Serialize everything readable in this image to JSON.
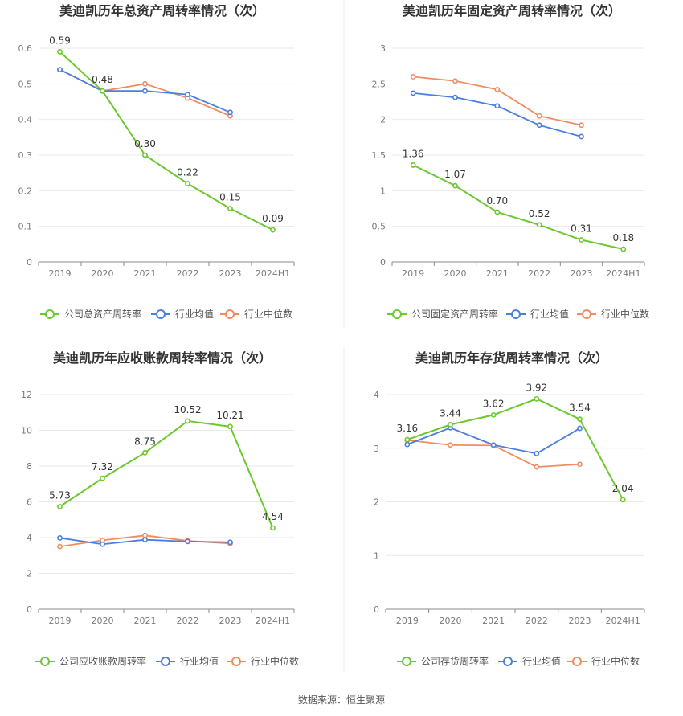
{
  "source": "数据来源：恒生聚源",
  "colors": {
    "company": "#6cc82d",
    "avg": "#4a7fe0",
    "median": "#f28b61",
    "grid": "#e8e8ee",
    "axis": "#8a8a8a"
  },
  "chart_data": [
    {
      "type": "line",
      "title": "美迪凯历年总资产周转率情况（次）",
      "categories": [
        "2019",
        "2020",
        "2021",
        "2022",
        "2023",
        "2024H1"
      ],
      "ylim": [
        0,
        0.6
      ],
      "yticks": [
        0,
        0.1,
        0.2,
        0.3,
        0.4,
        0.5,
        0.6
      ],
      "ytick_labels": [
        "0",
        "0.1",
        "0.2",
        "0.3",
        "0.4",
        "0.5",
        "0.6"
      ],
      "series": [
        {
          "name": "公司总资产周转率",
          "role": "company",
          "values": [
            0.59,
            0.48,
            0.3,
            0.22,
            0.15,
            0.09
          ],
          "labels": [
            "0.59",
            "0.48",
            "0.30",
            "0.22",
            "0.15",
            "0.09"
          ]
        },
        {
          "name": "行业均值",
          "role": "avg",
          "values": [
            0.54,
            0.48,
            0.48,
            0.47,
            0.42,
            null
          ]
        },
        {
          "name": "行业中位数",
          "role": "median",
          "values": [
            0.54,
            0.48,
            0.5,
            0.46,
            0.41,
            null
          ]
        }
      ]
    },
    {
      "type": "line",
      "title": "美迪凯历年固定资产周转率情况（次）",
      "categories": [
        "2019",
        "2020",
        "2021",
        "2022",
        "2023",
        "2024H1"
      ],
      "ylim": [
        0,
        3
      ],
      "yticks": [
        0,
        0.5,
        1,
        1.5,
        2,
        2.5,
        3
      ],
      "ytick_labels": [
        "0",
        "0.5",
        "1",
        "1.5",
        "2",
        "2.5",
        "3"
      ],
      "series": [
        {
          "name": "公司固定资产周转率",
          "role": "company",
          "values": [
            1.36,
            1.07,
            0.7,
            0.52,
            0.31,
            0.18
          ],
          "labels": [
            "1.36",
            "1.07",
            "0.70",
            "0.52",
            "0.31",
            "0.18"
          ]
        },
        {
          "name": "行业均值",
          "role": "avg",
          "values": [
            2.37,
            2.31,
            2.19,
            1.92,
            1.76,
            null
          ]
        },
        {
          "name": "行业中位数",
          "role": "median",
          "values": [
            2.6,
            2.54,
            2.42,
            2.05,
            1.92,
            null
          ]
        }
      ]
    },
    {
      "type": "line",
      "title": "美迪凯历年应收账款周转率情况（次）",
      "categories": [
        "2019",
        "2020",
        "2021",
        "2022",
        "2023",
        "2024H1"
      ],
      "ylim": [
        0,
        12
      ],
      "yticks": [
        0,
        2,
        4,
        6,
        8,
        10,
        12
      ],
      "ytick_labels": [
        "0",
        "2",
        "4",
        "6",
        "8",
        "10",
        "12"
      ],
      "series": [
        {
          "name": "公司应收账款周转率",
          "role": "company",
          "values": [
            5.73,
            7.32,
            8.75,
            10.52,
            10.21,
            4.54
          ],
          "labels": [
            "5.73",
            "7.32",
            "8.75",
            "10.52",
            "10.21",
            "4.54"
          ]
        },
        {
          "name": "行业均值",
          "role": "avg",
          "values": [
            3.98,
            3.63,
            3.88,
            3.78,
            3.74,
            null
          ]
        },
        {
          "name": "行业中位数",
          "role": "median",
          "values": [
            3.5,
            3.85,
            4.12,
            3.82,
            3.67,
            null
          ]
        }
      ]
    },
    {
      "type": "line",
      "title": "美迪凯历年存货周转率情况（次）",
      "categories": [
        "2019",
        "2020",
        "2021",
        "2022",
        "2023",
        "2024H1"
      ],
      "ylim": [
        0,
        4
      ],
      "yticks": [
        0,
        1,
        2,
        3,
        4
      ],
      "ytick_labels": [
        "0",
        "1",
        "2",
        "3",
        "4"
      ],
      "series": [
        {
          "name": "公司存货周转率",
          "role": "company",
          "values": [
            3.16,
            3.44,
            3.62,
            3.92,
            3.54,
            2.04
          ],
          "labels": [
            "3.16",
            "3.44",
            "3.62",
            "3.92",
            "3.54",
            "2.04"
          ]
        },
        {
          "name": "行业均值",
          "role": "avg",
          "values": [
            3.07,
            3.38,
            3.06,
            2.9,
            3.37,
            null
          ]
        },
        {
          "name": "行业中位数",
          "role": "median",
          "values": [
            3.15,
            3.06,
            3.05,
            2.65,
            2.7,
            null
          ]
        }
      ]
    }
  ]
}
